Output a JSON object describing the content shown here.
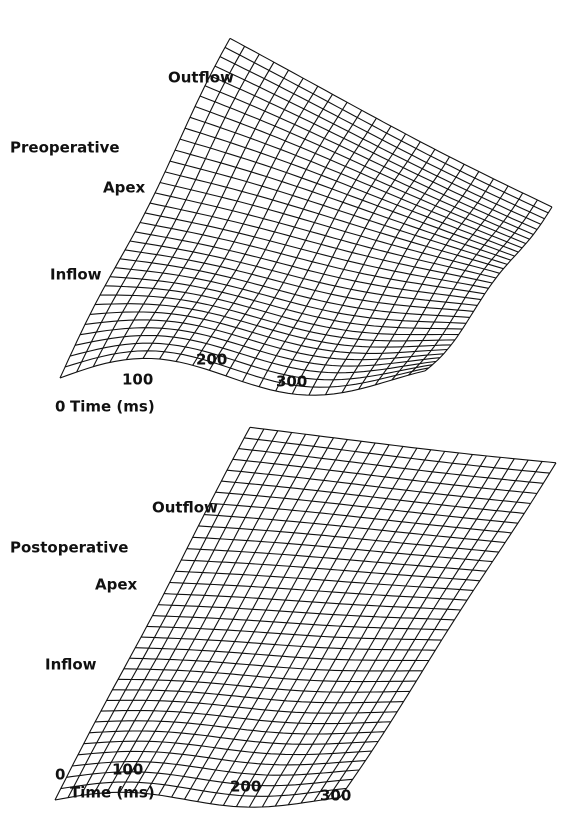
{
  "panels": [
    {
      "condition": "Preoperative",
      "regions": [
        "Outflow",
        "Apex",
        "Inflow"
      ],
      "time_ticks": [
        0,
        100,
        200,
        300
      ],
      "axis_label": "Time (ms)"
    },
    {
      "condition": "Postoperative",
      "regions": [
        "Outflow",
        "Apex",
        "Inflow"
      ],
      "time_ticks": [
        0,
        100,
        200,
        300
      ],
      "axis_label": "Time (ms)"
    }
  ]
}
